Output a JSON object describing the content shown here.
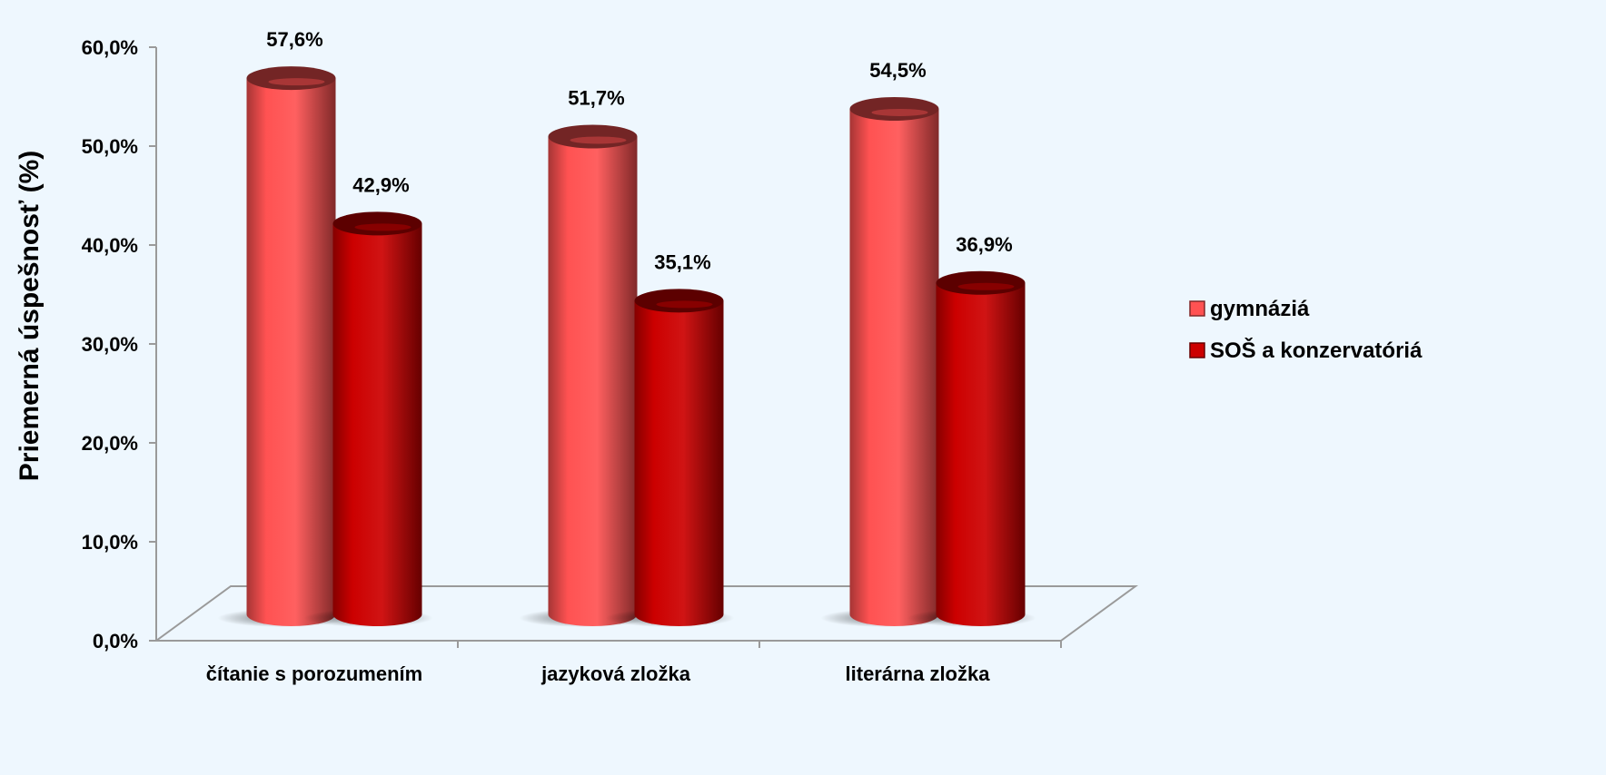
{
  "chart_data": {
    "type": "bar",
    "title": "",
    "xlabel": "",
    "ylabel": "Priemerná úspešnosť (%)",
    "ylim": [
      0,
      60
    ],
    "yticks": [
      "0,0%",
      "10,0%",
      "20,0%",
      "30,0%",
      "40,0%",
      "50,0%",
      "60,0%"
    ],
    "categories": [
      "čítanie s porozumením",
      "jazyková zložka",
      "literárna zložka"
    ],
    "series": [
      {
        "name": "gymnáziá",
        "values": [
          57.6,
          51.7,
          54.5
        ],
        "labels": [
          "57,6%",
          "51,7%",
          "54,5%"
        ],
        "color": "#ff5252"
      },
      {
        "name": "SOŠ a konzervatóriá",
        "values": [
          42.9,
          35.1,
          36.9
        ],
        "labels": [
          "42,9%",
          "35,1%",
          "36,9%"
        ],
        "color": "#cc0000"
      }
    ],
    "legend_position": "right",
    "grid": false
  }
}
